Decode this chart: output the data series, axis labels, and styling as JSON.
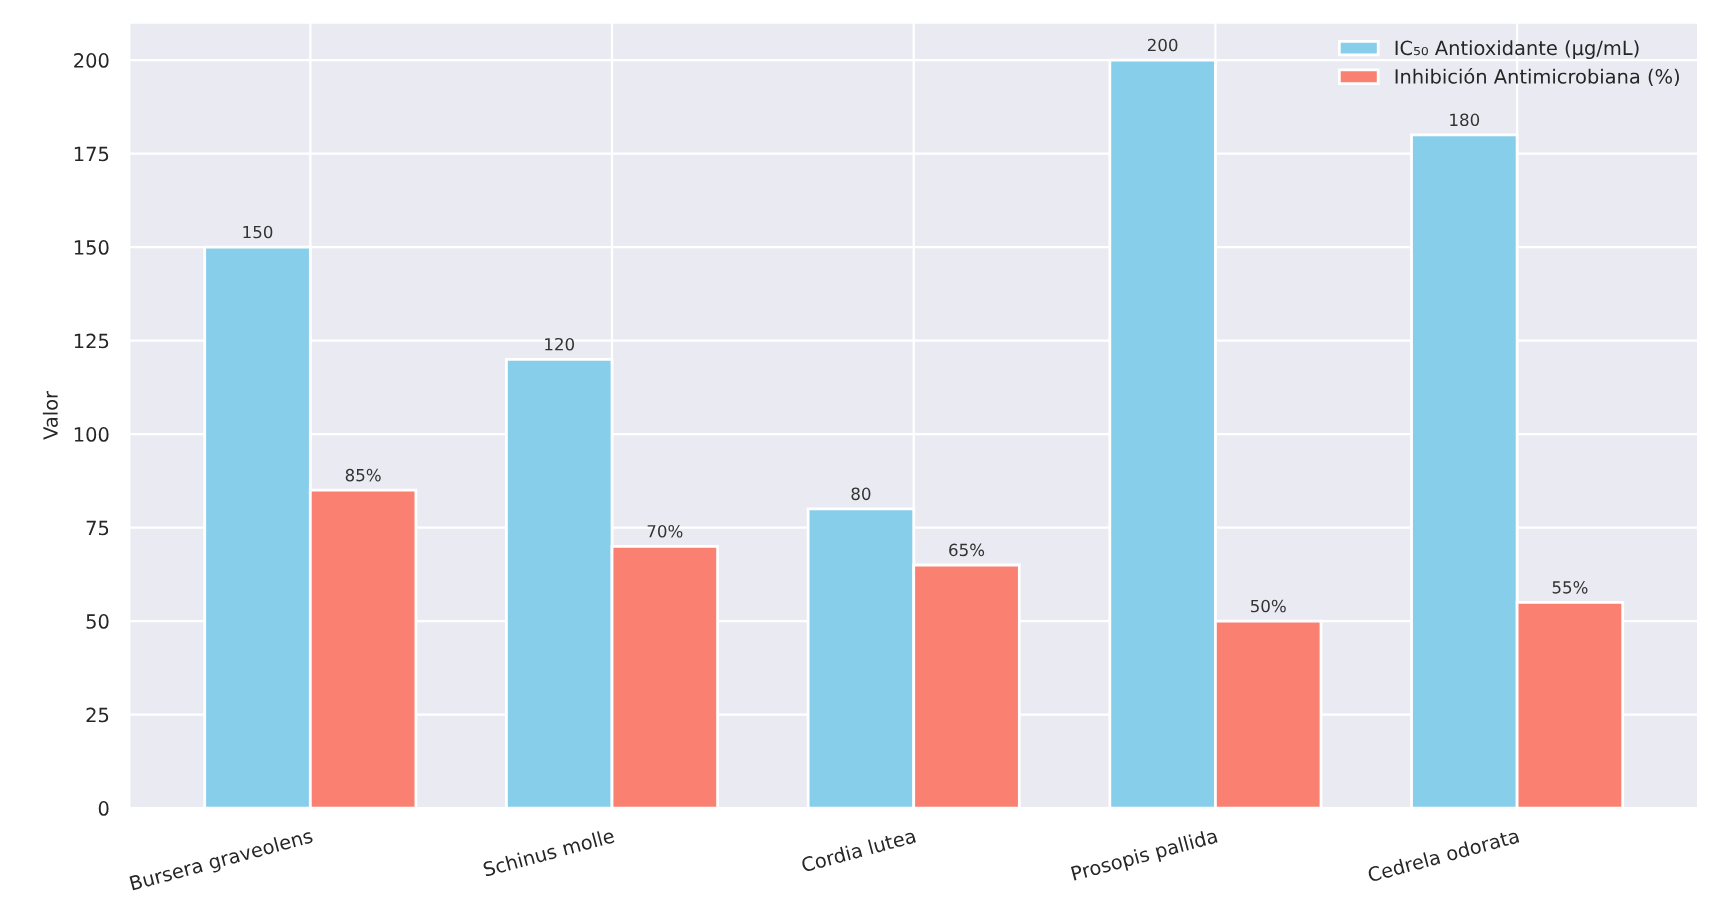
{
  "chart_data": {
    "type": "bar",
    "ylabel": "Valor",
    "categories": [
      "Bursera graveolens",
      "Schinus molle",
      "Cordia lutea",
      "Prosopis pallida",
      "Cedrela odorata"
    ],
    "series": [
      {
        "name": "IC₅₀ Antioxidante (μg/mL)",
        "color": "#87ceeb",
        "values": [
          150,
          120,
          80,
          200,
          180
        ],
        "value_labels": [
          "150",
          "120",
          "80",
          "200",
          "180"
        ]
      },
      {
        "name": "Inhibición Antimicrobiana (%)",
        "color": "#fa8072",
        "values": [
          85,
          70,
          65,
          50,
          55
        ],
        "value_labels": [
          "85%",
          "70%",
          "65%",
          "50%",
          "55%"
        ]
      }
    ],
    "ylim": [
      0,
      210
    ],
    "yticks": [
      0,
      25,
      50,
      75,
      100,
      125,
      150,
      175,
      200
    ],
    "grid": true,
    "legend": "top right"
  }
}
